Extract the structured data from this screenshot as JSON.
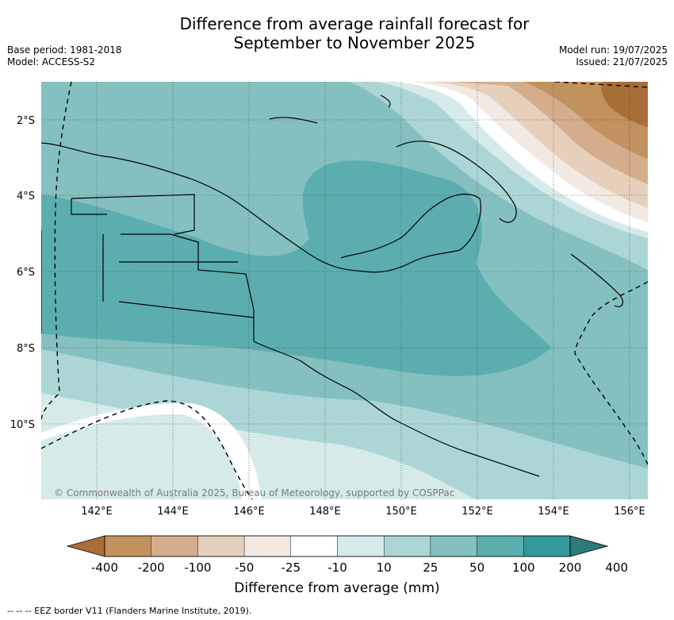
{
  "title": {
    "line1": "Difference from average rainfall forecast for",
    "line2": "September to November 2025"
  },
  "meta_left": {
    "base_period": "Base period: 1981-2018",
    "model": "Model: ACCESS-S2"
  },
  "meta_right": {
    "model_run": "Model run: 19/07/2025",
    "issued": "Issued: 21/07/2025"
  },
  "map": {
    "lat_labels": [
      "2°S",
      "4°S",
      "6°S",
      "8°S",
      "10°S"
    ],
    "lon_labels": [
      "142°E",
      "144°E",
      "146°E",
      "148°E",
      "150°E",
      "152°E",
      "154°E",
      "156°E"
    ],
    "copyright": "© Commonwealth of Australia 2025, Bureau of Meteorology, supported by COSPPac"
  },
  "colorbar": {
    "title": "Difference from average (mm)",
    "labels": [
      "-400",
      "-200",
      "-100",
      "-50",
      "-25",
      "-10",
      "10",
      "25",
      "50",
      "100",
      "200",
      "400"
    ],
    "colors": [
      "#a86e38",
      "#c1915e",
      "#d3ad8c",
      "#e6d0bc",
      "#f2e9e3",
      "#ffffff",
      "#d6eaea",
      "#acd6d6",
      "#85c0c0",
      "#5caeae",
      "#34999a",
      "#2f7a7a"
    ]
  },
  "footer": "--  --  -- EEZ border V11 (Flanders Marine Institute, 2019)."
}
